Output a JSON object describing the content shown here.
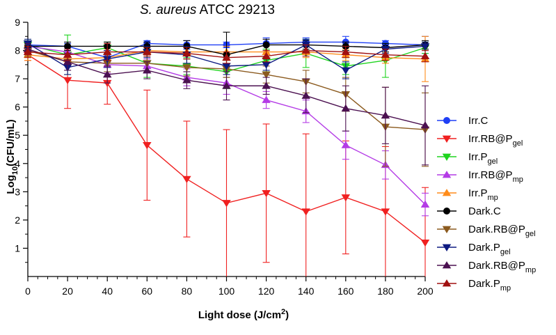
{
  "chart_data": {
    "type": "line",
    "title": {
      "italic": "S. aureus",
      "rest": " ATCC 29213"
    },
    "xlabel": {
      "main": "Light dose ",
      "unit": "(J/cm",
      "sup": "2",
      "end": ")"
    },
    "ylabel": {
      "pre": "Log",
      "sub": "10",
      "post": "(CFU/mL)"
    },
    "xlim": [
      0,
      200
    ],
    "ylim": [
      0,
      9
    ],
    "x": [
      0,
      20,
      40,
      60,
      80,
      100,
      120,
      140,
      160,
      180,
      200
    ],
    "x_ticks": [
      "0",
      "20",
      "40",
      "60",
      "80",
      "100",
      "120",
      "140",
      "160",
      "180",
      "200"
    ],
    "y_ticks": [
      "1",
      "2",
      "3",
      "4",
      "5",
      "6",
      "7",
      "8",
      "9"
    ],
    "legend_position": "right",
    "series": [
      {
        "name": "Irr.C",
        "label_main": "Irr.C",
        "label_sub": "",
        "color": "#1f3ff5",
        "marker": "circle",
        "values": [
          8.2,
          8.15,
          7.75,
          8.25,
          8.2,
          8.2,
          8.25,
          8.3,
          8.3,
          8.25,
          8.2
        ],
        "errors": [
          0.1,
          0.1,
          0.15,
          0.1,
          0.15,
          0.1,
          0.2,
          0.15,
          0.2,
          0.1,
          0.3
        ]
      },
      {
        "name": "Irr.RB@Pgel",
        "label_main": "Irr.RB@P",
        "label_sub": "gel",
        "color": "#f02020",
        "marker": "triangle-down",
        "values": [
          7.85,
          6.95,
          6.85,
          4.65,
          3.45,
          2.6,
          2.95,
          2.3,
          2.8,
          2.3,
          1.2
        ],
        "errors": [
          0.2,
          1.0,
          0.75,
          1.95,
          2.05,
          2.6,
          2.45,
          2.75,
          2.0,
          2.3,
          1.95
        ]
      },
      {
        "name": "Irr.Pgel",
        "label_main": "Irr.P",
        "label_sub": "gel",
        "color": "#1ed41e",
        "marker": "triangle-down",
        "values": [
          8.2,
          7.85,
          8.1,
          7.55,
          7.45,
          7.25,
          7.65,
          7.9,
          7.45,
          7.65,
          8.1
        ],
        "errors": [
          0.15,
          0.7,
          0.2,
          0.5,
          0.3,
          0.6,
          0.4,
          0.5,
          0.3,
          0.6,
          0.2
        ]
      },
      {
        "name": "Irr.RB@Pmp",
        "label_main": "Irr.RB@P",
        "label_sub": "mp",
        "color": "#b43be6",
        "marker": "triangle-up",
        "values": [
          8.15,
          7.95,
          7.5,
          7.45,
          7.05,
          6.85,
          6.25,
          5.85,
          4.65,
          3.95,
          2.55
        ],
        "errors": [
          0.15,
          0.2,
          0.3,
          0.25,
          0.3,
          0.4,
          0.3,
          0.4,
          0.5,
          0.5,
          0.4
        ]
      },
      {
        "name": "Irr.Pmp",
        "label_main": "Irr.P",
        "label_sub": "mp",
        "color": "#ff8c1a",
        "marker": "triangle-up",
        "values": [
          7.85,
          7.7,
          7.75,
          8.0,
          7.95,
          7.95,
          7.95,
          7.95,
          7.85,
          7.75,
          7.7
        ],
        "errors": [
          0.2,
          0.2,
          0.3,
          0.15,
          0.15,
          0.2,
          0.2,
          0.2,
          0.2,
          0.2,
          0.8
        ]
      },
      {
        "name": "Dark.C",
        "label_main": "Dark.C",
        "label_sub": "",
        "color": "#000000",
        "marker": "circle",
        "values": [
          8.15,
          8.15,
          8.15,
          8.15,
          8.15,
          7.85,
          8.2,
          8.2,
          8.15,
          8.1,
          8.2
        ],
        "errors": [
          0.15,
          0.15,
          0.15,
          0.15,
          0.2,
          0.8,
          0.2,
          0.15,
          0.15,
          0.15,
          0.15
        ]
      },
      {
        "name": "Dark.RB@Pgel",
        "label_main": "Dark.RB@P",
        "label_sub": "gel",
        "color": "#8b5a1e",
        "marker": "triangle-down",
        "values": [
          8.0,
          7.6,
          7.55,
          7.55,
          7.4,
          7.35,
          7.15,
          6.9,
          6.45,
          5.3,
          5.2
        ],
        "errors": [
          0.2,
          0.3,
          0.3,
          0.3,
          0.3,
          0.3,
          0.3,
          0.4,
          0.6,
          1.4,
          1.3
        ]
      },
      {
        "name": "Dark.Pgel",
        "label_main": "Dark.P",
        "label_sub": "gel",
        "color": "#0d1a80",
        "marker": "triangle-down",
        "values": [
          8.25,
          7.4,
          7.7,
          7.95,
          7.85,
          7.45,
          7.5,
          8.2,
          7.3,
          8.05,
          8.15
        ],
        "errors": [
          0.15,
          0.25,
          0.3,
          0.2,
          0.3,
          0.3,
          0.2,
          0.2,
          0.3,
          0.15,
          0.15
        ]
      },
      {
        "name": "Dark.RB@Pmp",
        "label_main": "Dark.RB@P",
        "label_sub": "mp",
        "color": "#4b1050",
        "marker": "triangle-up",
        "values": [
          8.05,
          7.6,
          7.15,
          7.3,
          6.95,
          6.75,
          6.75,
          6.4,
          5.95,
          5.7,
          5.35
        ],
        "errors": [
          0.2,
          0.3,
          0.3,
          0.3,
          0.3,
          0.5,
          0.3,
          0.6,
          0.8,
          1.0,
          1.4
        ]
      },
      {
        "name": "Dark.Pmp",
        "label_main": "Dark.P",
        "label_sub": "mp",
        "color": "#a01010",
        "marker": "triangle-up",
        "values": [
          7.95,
          7.85,
          7.95,
          7.95,
          7.9,
          7.75,
          7.8,
          8.0,
          7.95,
          7.85,
          7.8
        ],
        "errors": [
          0.2,
          0.2,
          0.3,
          0.15,
          0.2,
          0.2,
          0.2,
          0.2,
          0.2,
          0.2,
          0.2
        ]
      }
    ]
  }
}
